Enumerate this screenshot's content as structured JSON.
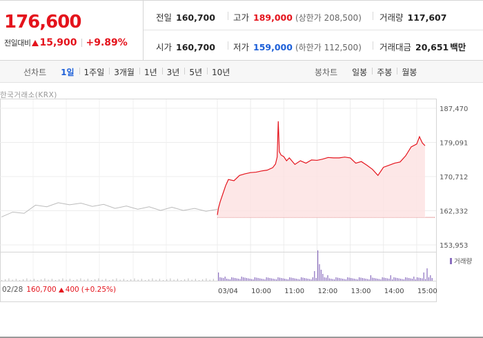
{
  "quote": {
    "current_price": "176,600",
    "change_label": "전일대비",
    "change_amount": "15,900",
    "change_percent": "+9.89%",
    "prev_close_label": "전일",
    "prev_close": "160,700",
    "open_label": "시가",
    "open": "160,700",
    "high_label": "고가",
    "high": "189,000",
    "upper_limit": "(상한가 208,500)",
    "low_label": "저가",
    "low": "159,000",
    "lower_limit": "(하한가 112,500)",
    "volume_label": "거래량",
    "volume": "117,607",
    "trade_value_label": "거래대금",
    "trade_value": "20,651",
    "trade_value_unit": "백만"
  },
  "tabs": {
    "line_title": "선차트",
    "line_items": [
      "1일",
      "1주일",
      "3개월",
      "1년",
      "3년",
      "5년",
      "10년"
    ],
    "active": "1일",
    "candle_title": "봉차트",
    "candle_items": [
      "일봉",
      "주봉",
      "월봉"
    ]
  },
  "chart": {
    "exchange_label": "한국거래소(KRX)",
    "y_ticks": [
      "187,470",
      "179,091",
      "170,712",
      "162,332",
      "153,953"
    ],
    "x_labels": [
      "03/04",
      "10:00",
      "11:00",
      "12:00",
      "13:00",
      "14:00",
      "15:00"
    ],
    "volume_legend": "거래량",
    "prev_info": {
      "date": "02/28",
      "price": "160,700",
      "change": "400",
      "pct": "(+0.25%)"
    },
    "colors": {
      "up": "#e4131c",
      "down": "#1c5fd8",
      "prev_line": "#bbbbbb",
      "fill": "#fde3e3",
      "volume": "#8a6dbf"
    }
  },
  "chart_data": {
    "type": "line",
    "title": "",
    "xlabel": "",
    "ylabel": "",
    "ylim": [
      153953,
      187470
    ],
    "y_ticks": [
      187470,
      179091,
      170712,
      162332,
      153953
    ],
    "x_labels": [
      "03/04",
      "10:00",
      "11:00",
      "12:00",
      "13:00",
      "14:00",
      "15:00"
    ],
    "series": [
      {
        "x": [
          "09:00",
          "09:02",
          "09:05",
          "09:10",
          "09:15",
          "09:20",
          "09:30",
          "09:40",
          "09:50",
          "10:00",
          "10:10",
          "10:20",
          "10:30",
          "10:40",
          "10:45",
          "10:48",
          "10:50",
          "10:52",
          "10:55",
          "11:00",
          "11:05",
          "11:10",
          "11:20",
          "11:30",
          "11:40",
          "11:50",
          "12:00",
          "12:10",
          "12:20",
          "12:30",
          "12:40",
          "12:50",
          "13:00",
          "13:10",
          "13:20",
          "13:30",
          "13:40",
          "13:50",
          "14:00",
          "14:10",
          "14:20",
          "14:30",
          "14:40",
          "14:50",
          "15:00",
          "15:05",
          "15:10",
          "15:15"
        ],
        "values": [
          161300,
          163000,
          164500,
          166500,
          168500,
          170000,
          169700,
          171000,
          171400,
          171700,
          171800,
          172100,
          172300,
          172900,
          173800,
          175500,
          184300,
          176800,
          176000,
          175600,
          174600,
          175300,
          173700,
          174600,
          174000,
          174800,
          174700,
          175000,
          175400,
          175300,
          175300,
          175500,
          175300,
          174000,
          174400,
          173500,
          172500,
          171000,
          173000,
          173500,
          174000,
          174300,
          175800,
          178000,
          178700,
          180500,
          179000,
          178300
        ]
      }
    ],
    "prev_day_close": 160700
  }
}
